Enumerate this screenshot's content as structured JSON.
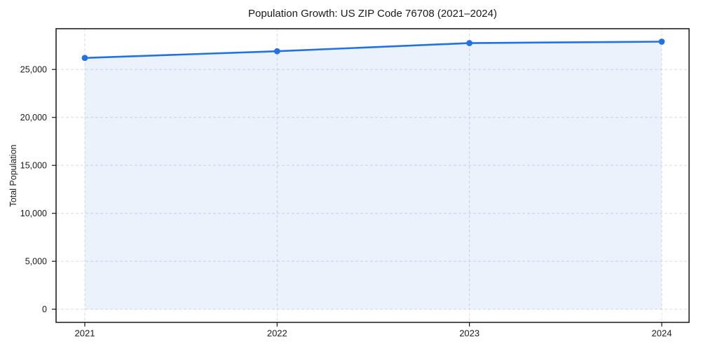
{
  "chart_data": {
    "type": "line",
    "title": "Population Growth: US ZIP Code 76708 (2021–2024)",
    "xlabel": "",
    "ylabel": "Total Population",
    "categories": [
      "2021",
      "2022",
      "2023",
      "2024"
    ],
    "x": [
      2021,
      2022,
      2023,
      2024
    ],
    "series": [
      {
        "name": "Total Population",
        "values": [
          26200,
          26900,
          27750,
          27900
        ]
      }
    ],
    "marker": "circle",
    "area_fill": true,
    "area_fill_baseline": 0,
    "grid": "dashed both axes",
    "legend": "none",
    "xlim": [
      2020.8506,
      2024.1422
    ],
    "ylim": [
      -1370,
      29250
    ],
    "yticks": [
      0,
      5000,
      10000,
      15000,
      20000,
      25000
    ],
    "ytick_labels": [
      "0",
      "5,000",
      "10,000",
      "15,000",
      "20,000",
      "25,000"
    ],
    "xticks": [
      2021,
      2022,
      2023,
      2024
    ],
    "xtick_labels": [
      "2021",
      "2022",
      "2023",
      "2024"
    ],
    "colors": {
      "line": "#2272e2",
      "marker": "#2272e2",
      "area_fill": "rgba(34,114,226,0.09)",
      "grid": "#d9dce1",
      "spine": "#141414",
      "text": "#1a1a1a"
    }
  }
}
